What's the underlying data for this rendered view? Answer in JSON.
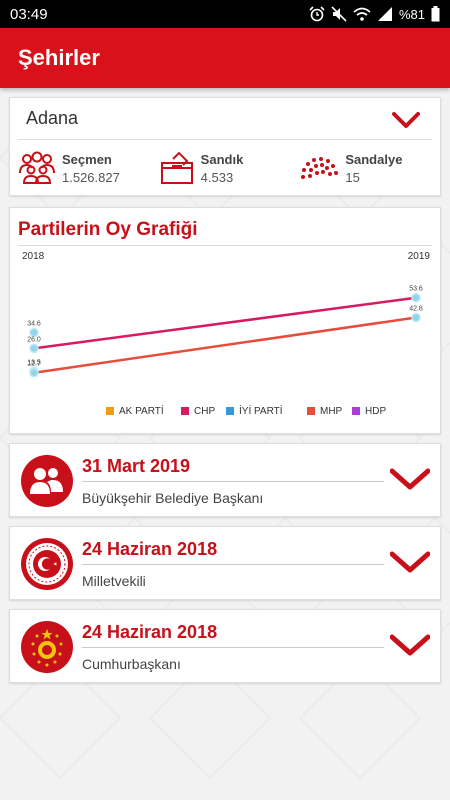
{
  "status_bar": {
    "time": "03:49",
    "battery": "%81"
  },
  "app_bar": {
    "title": "Şehirler"
  },
  "city_selector": {
    "selected": "Adana",
    "icon": "chevron-down-icon",
    "accent_color": "#c8101a"
  },
  "stats": [
    {
      "label": "Seçmen",
      "value": "1.526.827",
      "icon": "people-icon"
    },
    {
      "label": "Sandık",
      "value": "4.533",
      "icon": "ballot-box-icon"
    },
    {
      "label": "Sandalye",
      "value": "15",
      "icon": "parliament-seats-icon"
    }
  ],
  "chart_data": {
    "type": "line",
    "title": "Partilerin Oy Grafiği",
    "categories": [
      "2018",
      "2019"
    ],
    "series": [
      {
        "name": "AK PARTİ",
        "color": "#f39c12",
        "values": [
          null,
          null
        ]
      },
      {
        "name": "CHP",
        "color": "#d81b60",
        "values": [
          26.0,
          53.6
        ]
      },
      {
        "name": "İYİ PARTİ",
        "color": "#3498db",
        "values": [
          null,
          null
        ]
      },
      {
        "name": "MHP",
        "color": "#e74c3c",
        "values": [
          12.7,
          42.8
        ]
      },
      {
        "name": "HDP",
        "color": "#b03ad8",
        "values": [
          null,
          null
        ]
      }
    ],
    "point_labels": [
      {
        "x": "2018",
        "value": 34.6,
        "label": "34.6"
      },
      {
        "x": "2018",
        "value": 26.0,
        "label": "26.0"
      },
      {
        "x": "2018",
        "value": 13.5,
        "label": "13.5"
      },
      {
        "x": "2018",
        "value": 12.7,
        "label": "12.7"
      },
      {
        "x": "2019",
        "value": 53.6,
        "label": "53.6"
      },
      {
        "x": "2019",
        "value": 42.8,
        "label": "42.8"
      }
    ],
    "marker_color": "#8fd6ec",
    "ylim": [
      0,
      60
    ],
    "legend_position": "bottom",
    "grid": false
  },
  "elections": [
    {
      "date": "31 Mart 2019",
      "type": "Büyükşehir Belediye Başkanı",
      "icon": "people-circle-icon"
    },
    {
      "date": "24 Haziran 2018",
      "type": "Milletvekili",
      "icon": "parliament-seal-icon"
    },
    {
      "date": "24 Haziran 2018",
      "type": "Cumhurbaşkanı",
      "icon": "presidential-seal-icon"
    }
  ]
}
